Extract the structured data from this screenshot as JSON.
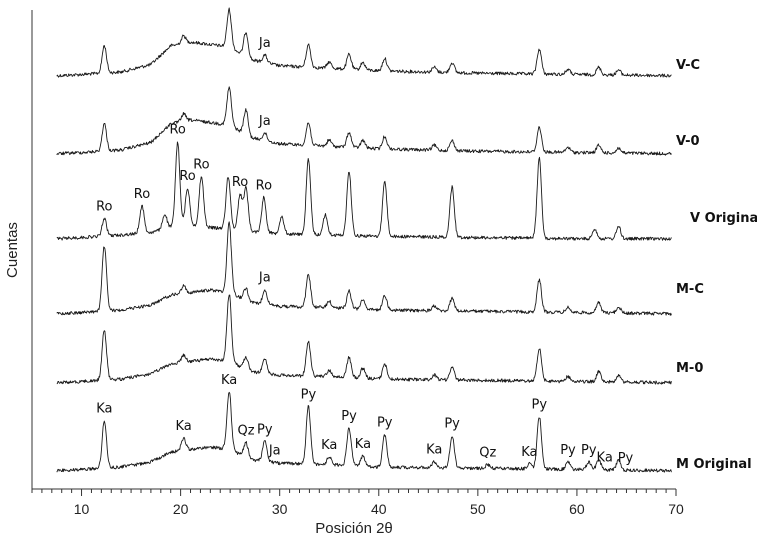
{
  "chart_data": {
    "type": "line",
    "xlabel": "Posición 2θ",
    "ylabel": "Cuentas",
    "xlim": [
      5,
      70
    ],
    "x_ticks": [
      10,
      20,
      30,
      40,
      50,
      60,
      70
    ],
    "grid": false,
    "legend": "series labels at right end of each trace",
    "series": [
      {
        "name": "V-C",
        "background": [
          [
            5,
            0
          ],
          [
            10,
            2
          ],
          [
            14,
            4
          ],
          [
            17,
            10
          ],
          [
            19,
            25
          ],
          [
            21,
            28
          ],
          [
            23,
            26
          ],
          [
            25,
            24
          ],
          [
            27,
            14
          ],
          [
            30,
            9
          ],
          [
            35,
            7
          ],
          [
            40,
            5
          ],
          [
            50,
            3
          ],
          [
            60,
            2
          ],
          [
            70,
            1
          ]
        ],
        "peaks": [
          [
            12.3,
            22
          ],
          [
            20.3,
            6
          ],
          [
            24.9,
            30
          ],
          [
            26.6,
            20
          ],
          [
            28.5,
            6
          ],
          [
            32.9,
            18
          ],
          [
            35.0,
            5
          ],
          [
            37.0,
            12
          ],
          [
            38.4,
            6
          ],
          [
            40.6,
            10
          ],
          [
            45.6,
            4
          ],
          [
            47.4,
            8
          ],
          [
            56.2,
            20
          ],
          [
            59.1,
            4
          ],
          [
            62.2,
            6
          ],
          [
            64.2,
            4
          ]
        ],
        "annotations": [
          {
            "text": "Ja",
            "x": 28.5
          }
        ]
      },
      {
        "name": "V-0",
        "background": [
          [
            5,
            0
          ],
          [
            10,
            2
          ],
          [
            14,
            4
          ],
          [
            17,
            10
          ],
          [
            19,
            25
          ],
          [
            21,
            28
          ],
          [
            23,
            26
          ],
          [
            25,
            24
          ],
          [
            27,
            14
          ],
          [
            30,
            9
          ],
          [
            35,
            7
          ],
          [
            40,
            5
          ],
          [
            50,
            3
          ],
          [
            60,
            2
          ],
          [
            70,
            1
          ]
        ],
        "peaks": [
          [
            12.3,
            22
          ],
          [
            20.3,
            6
          ],
          [
            24.9,
            30
          ],
          [
            26.6,
            20
          ],
          [
            28.5,
            6
          ],
          [
            32.9,
            18
          ],
          [
            35.0,
            5
          ],
          [
            37.0,
            12
          ],
          [
            38.4,
            6
          ],
          [
            40.6,
            10
          ],
          [
            45.6,
            4
          ],
          [
            47.4,
            8
          ],
          [
            56.2,
            20
          ],
          [
            59.1,
            4
          ],
          [
            62.2,
            6
          ],
          [
            64.2,
            4
          ]
        ],
        "annotations": [
          {
            "text": "Ja",
            "x": 28.5
          }
        ]
      },
      {
        "name": "V Original",
        "background": [
          [
            5,
            0
          ],
          [
            10,
            2
          ],
          [
            14,
            4
          ],
          [
            17,
            6
          ],
          [
            19,
            10
          ],
          [
            21,
            12
          ],
          [
            23,
            10
          ],
          [
            25,
            9
          ],
          [
            27,
            7
          ],
          [
            30,
            5
          ],
          [
            35,
            4
          ],
          [
            40,
            3
          ],
          [
            50,
            2
          ],
          [
            60,
            1
          ],
          [
            70,
            1
          ]
        ],
        "peaks": [
          [
            12.3,
            14
          ],
          [
            16.1,
            22
          ],
          [
            18.4,
            12
          ],
          [
            19.7,
            68
          ],
          [
            20.7,
            30
          ],
          [
            22.1,
            40
          ],
          [
            24.8,
            42
          ],
          [
            26.0,
            28
          ],
          [
            26.6,
            34
          ],
          [
            28.4,
            28
          ],
          [
            30.2,
            14
          ],
          [
            32.9,
            60
          ],
          [
            34.6,
            16
          ],
          [
            37.0,
            52
          ],
          [
            40.6,
            44
          ],
          [
            47.4,
            40
          ],
          [
            56.2,
            64
          ],
          [
            61.8,
            8
          ],
          [
            64.2,
            10
          ]
        ],
        "annotations": [
          {
            "text": "Ro",
            "x": 12.3
          },
          {
            "text": "Ro",
            "x": 16.1
          },
          {
            "text": "Ro",
            "x": 19.7
          },
          {
            "text": "Ro",
            "x": 20.7
          },
          {
            "text": "Ro",
            "x": 22.1
          },
          {
            "text": "Ro",
            "x": 26.0
          },
          {
            "text": "Ro",
            "x": 28.4
          }
        ]
      },
      {
        "name": "M-C",
        "background": [
          [
            5,
            0
          ],
          [
            10,
            2
          ],
          [
            14,
            4
          ],
          [
            17,
            8
          ],
          [
            19,
            16
          ],
          [
            21,
            18
          ],
          [
            23,
            20
          ],
          [
            25,
            18
          ],
          [
            27,
            10
          ],
          [
            30,
            7
          ],
          [
            35,
            6
          ],
          [
            40,
            4
          ],
          [
            50,
            3
          ],
          [
            60,
            2
          ],
          [
            70,
            1
          ]
        ],
        "peaks": [
          [
            12.3,
            52
          ],
          [
            20.3,
            6
          ],
          [
            24.9,
            56
          ],
          [
            26.6,
            10
          ],
          [
            28.5,
            12
          ],
          [
            32.9,
            26
          ],
          [
            35.0,
            5
          ],
          [
            37.0,
            14
          ],
          [
            38.4,
            8
          ],
          [
            40.6,
            12
          ],
          [
            45.6,
            4
          ],
          [
            47.4,
            10
          ],
          [
            56.2,
            26
          ],
          [
            59.1,
            4
          ],
          [
            62.2,
            8
          ],
          [
            64.2,
            5
          ]
        ],
        "annotations": [
          {
            "text": "Ja",
            "x": 28.5
          }
        ]
      },
      {
        "name": "M-0",
        "background": [
          [
            5,
            0
          ],
          [
            10,
            2
          ],
          [
            14,
            4
          ],
          [
            17,
            8
          ],
          [
            19,
            16
          ],
          [
            21,
            18
          ],
          [
            23,
            20
          ],
          [
            25,
            18
          ],
          [
            27,
            10
          ],
          [
            30,
            7
          ],
          [
            35,
            6
          ],
          [
            40,
            4
          ],
          [
            50,
            3
          ],
          [
            60,
            2
          ],
          [
            70,
            1
          ]
        ],
        "peaks": [
          [
            12.3,
            40
          ],
          [
            20.3,
            6
          ],
          [
            24.9,
            54
          ],
          [
            26.6,
            10
          ],
          [
            28.5,
            12
          ],
          [
            32.9,
            28
          ],
          [
            35.0,
            5
          ],
          [
            37.0,
            16
          ],
          [
            38.4,
            8
          ],
          [
            40.6,
            12
          ],
          [
            45.6,
            4
          ],
          [
            47.4,
            10
          ],
          [
            56.2,
            26
          ],
          [
            59.1,
            4
          ],
          [
            62.2,
            8
          ],
          [
            64.2,
            5
          ]
        ],
        "annotations": []
      },
      {
        "name": "M Original",
        "background": [
          [
            5,
            0
          ],
          [
            10,
            2
          ],
          [
            14,
            4
          ],
          [
            17,
            8
          ],
          [
            19,
            16
          ],
          [
            21,
            18
          ],
          [
            23,
            20
          ],
          [
            25,
            18
          ],
          [
            27,
            10
          ],
          [
            30,
            7
          ],
          [
            35,
            6
          ],
          [
            40,
            4
          ],
          [
            50,
            3
          ],
          [
            60,
            2
          ],
          [
            70,
            1
          ]
        ],
        "peaks": [
          [
            12.3,
            38
          ],
          [
            20.3,
            10
          ],
          [
            24.9,
            46
          ],
          [
            26.6,
            12
          ],
          [
            28.5,
            16
          ],
          [
            32.9,
            46
          ],
          [
            35.0,
            6
          ],
          [
            37.0,
            30
          ],
          [
            38.4,
            8
          ],
          [
            40.6,
            26
          ],
          [
            45.6,
            5
          ],
          [
            47.4,
            26
          ],
          [
            51.0,
            3
          ],
          [
            55.2,
            4
          ],
          [
            56.2,
            42
          ],
          [
            59.1,
            6
          ],
          [
            61.2,
            6
          ],
          [
            62.2,
            8
          ],
          [
            64.2,
            8
          ]
        ],
        "annotations": [
          {
            "text": "Ka",
            "x": 12.3
          },
          {
            "text": "Ka",
            "x": 20.3
          },
          {
            "text": "Ka",
            "x": 24.9
          },
          {
            "text": "Qz",
            "x": 26.6
          },
          {
            "text": "Py",
            "x": 28.5
          },
          {
            "text": "Ja",
            "x": 29.5
          },
          {
            "text": "Py",
            "x": 32.9
          },
          {
            "text": "Ka",
            "x": 35.0
          },
          {
            "text": "Py",
            "x": 37.0
          },
          {
            "text": "Ka",
            "x": 38.4
          },
          {
            "text": "Py",
            "x": 40.6
          },
          {
            "text": "Ka",
            "x": 45.6
          },
          {
            "text": "Py",
            "x": 47.4
          },
          {
            "text": "Qz",
            "x": 51.0
          },
          {
            "text": "Ka",
            "x": 55.2
          },
          {
            "text": "Py",
            "x": 56.2
          },
          {
            "text": "Py",
            "x": 59.1
          },
          {
            "text": "Py",
            "x": 61.2
          },
          {
            "text": "Ka",
            "x": 62.8
          },
          {
            "text": "Py",
            "x": 64.9
          }
        ]
      }
    ]
  }
}
